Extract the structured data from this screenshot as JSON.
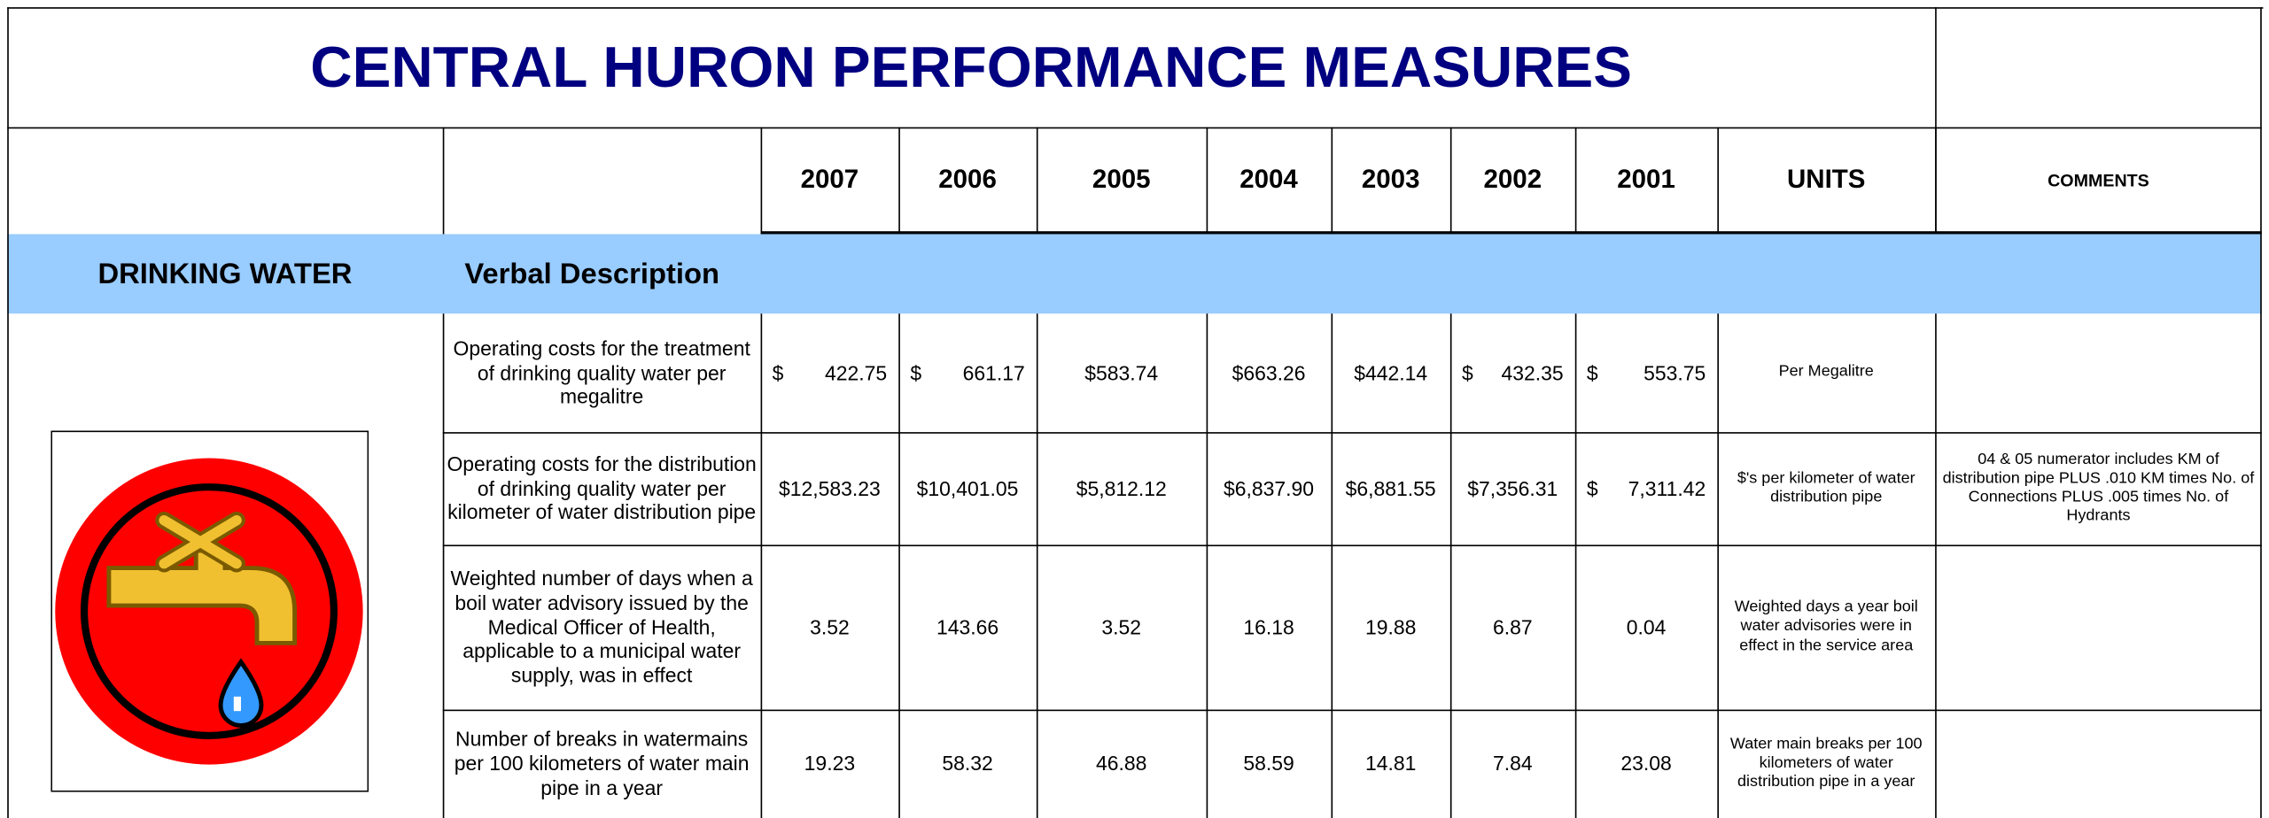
{
  "header": {
    "title": "CENTRAL HURON PERFORMANCE MEASURES"
  },
  "table": {
    "columns": [
      "2007",
      "2006",
      "2005",
      "2004",
      "2003",
      "2002",
      "2001",
      "UNITS",
      "COMMENTS"
    ],
    "section": "DRINKING WATER",
    "description_heading": "Verbal Description",
    "rows": [
      {
        "description": "Operating costs for the treatment of drinking quality water per megalitre",
        "values": [
          {
            "symbol": "$",
            "amount": "422.75"
          },
          {
            "symbol": "$",
            "amount": "661.17"
          },
          "$583.74",
          "$663.26",
          "$442.14",
          {
            "symbol": "$",
            "amount": "432.35"
          },
          {
            "symbol": "$",
            "amount": "553.75"
          }
        ],
        "units": "Per Megalitre",
        "comments": null
      },
      {
        "description": "Operating costs for the distribution of drinking quality water per kilometer of water distribution pipe",
        "values": [
          "$12,583.23",
          "$10,401.05",
          "$5,812.12",
          "$6,837.90",
          "$6,881.55",
          "$7,356.31",
          {
            "symbol": "$",
            "amount": "7,311.42"
          }
        ],
        "units": "$'s per kilometer of water distribution pipe",
        "comments": "04 & 05 numerator includes KM of distribution pipe PLUS .010 KM times No. of Connections PLUS .005 times No. of Hydrants"
      },
      {
        "description": "Weighted number of days when a boil water advisory issued by the Medical Officer of Health, applicable to a municipal water supply, was in effect",
        "values": [
          "3.52",
          "143.66",
          "3.52",
          "16.18",
          "19.88",
          "6.87",
          "0.04"
        ],
        "units": "Weighted days a year boil water advisories were in effect in the service area",
        "comments": null
      },
      {
        "description": "Number of breaks in watermains per 100 kilometers of water main pipe in a year",
        "values": [
          "19.23",
          "58.32",
          "46.88",
          "58.59",
          "14.81",
          "7.84",
          "23.08"
        ],
        "units": "Water main breaks per 100 kilometers of water distribution pipe in a year",
        "comments": null
      }
    ]
  }
}
